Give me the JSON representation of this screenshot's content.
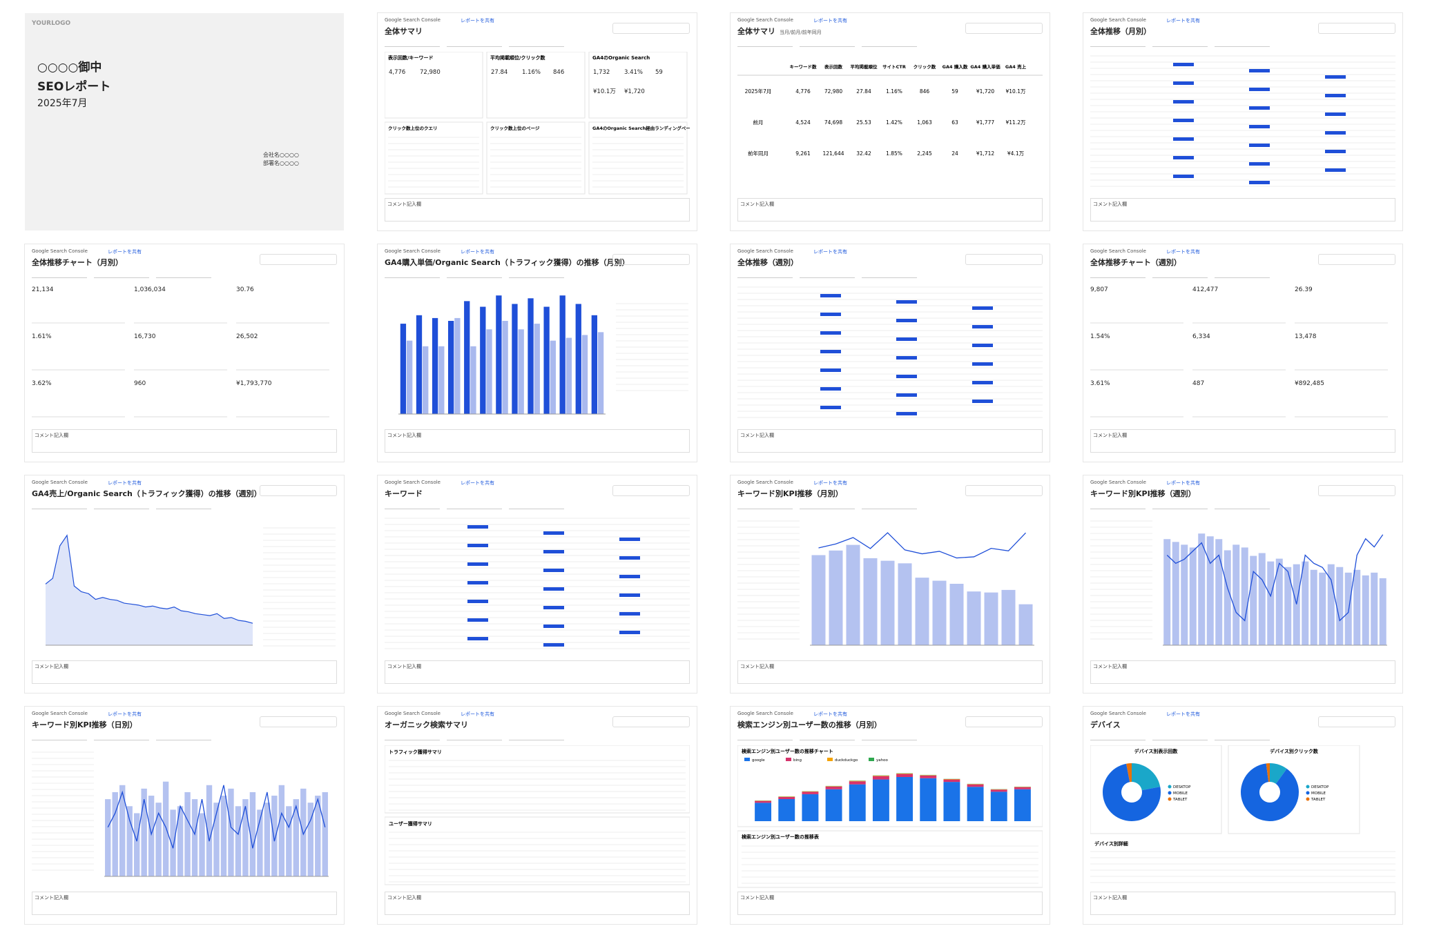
{
  "cover": {
    "logo": "YOURLOGO",
    "client": "○○○○御中",
    "title": "SEOレポート",
    "month": "2025年7月",
    "company": "会社名○○○○",
    "department": "部署名○○○○"
  },
  "source": "Google Search Console",
  "share": "レポートを共有",
  "comment": "コメント記入欄",
  "pages": [
    {
      "type": "groups",
      "title": "全体サマリ",
      "groups": [
        {
          "title": "表示回数/キーワード",
          "values": [
            "4,776",
            "72,980"
          ]
        },
        {
          "title": "平均掲載順位/クリック数",
          "values": [
            "27.84",
            "1.16%",
            "846"
          ]
        },
        {
          "title": "GA4のOrganic Search",
          "values": [
            "1,732",
            "3.41%",
            "59",
            "¥10.1万",
            "¥1,720"
          ]
        }
      ],
      "tables": [
        "クリック数上位のクエリ",
        "クリック数上位のページ",
        "GA4のOrganic Search経由ランディングページ"
      ]
    },
    {
      "type": "table",
      "title": "全体サマリ",
      "subtitle": "当月/前月/前年同月",
      "columns": [
        "キーワード数",
        "表示回数",
        "平均掲載順位",
        "サイトCTR",
        "クリック数",
        "GA4 購入数",
        "GA4 購入単価",
        "GA4 売上"
      ],
      "rows": [
        {
          "label": "2025年7月",
          "cells": [
            "4,776",
            "72,980",
            "27.84",
            "1.16%",
            "846",
            "59",
            "¥1,720",
            "¥10.1万"
          ]
        },
        {
          "label": "前月",
          "cells": [
            "4,524",
            "74,698",
            "25.53",
            "1.42%",
            "1,063",
            "63",
            "¥1,777",
            "¥11.2万"
          ]
        },
        {
          "label": "前年同月",
          "cells": [
            "9,261",
            "121,644",
            "32.42",
            "1.85%",
            "2,245",
            "24",
            "¥1,712",
            "¥4.1万"
          ]
        }
      ]
    },
    {
      "type": "placeholder",
      "title": "全体推移（月別）"
    },
    {
      "type": "kpis",
      "title": "全体推移チャート（月別）",
      "values": [
        "21,134",
        "1,036,034",
        "30.76",
        "1.61%",
        "16,730",
        "26,502",
        "3.62%",
        "960",
        "¥1,793,770"
      ]
    },
    {
      "type": "bar",
      "title": "GA4購入単価/Organic Search（トラフィック獲得）の推移（月別）",
      "ylim": [
        0,
        2200
      ],
      "series": [
        {
          "color": "#1f4fd8",
          "values": [
            1600,
            1750,
            1700,
            1650,
            2000,
            1900,
            2100,
            1950,
            2050,
            1900,
            2100,
            1950,
            1750
          ]
        },
        {
          "color": "#a9b9ee",
          "values": [
            1300,
            1200,
            1200,
            1700,
            1200,
            1500,
            1650,
            1500,
            1600,
            1300,
            1350,
            1400,
            1450
          ]
        }
      ]
    },
    {
      "type": "placeholder",
      "title": "全体推移（週別）"
    },
    {
      "type": "kpis",
      "title": "全体推移チャート（週別）",
      "values": [
        "9,807",
        "412,477",
        "26.39",
        "1.54%",
        "6,334",
        "13,478",
        "3.61%",
        "487",
        "¥892,485"
      ]
    },
    {
      "type": "area",
      "title": "GA4売上/Organic Search（トラフィック獲得）の推移（週別）",
      "ylim": [
        0,
        1300
      ],
      "color": "#1f4fd8",
      "values": [
        640,
        700,
        1040,
        1150,
        620,
        560,
        540,
        480,
        500,
        480,
        470,
        440,
        430,
        420,
        400,
        410,
        390,
        380,
        400,
        360,
        350,
        330,
        320,
        310,
        330,
        280,
        290,
        260,
        250,
        230
      ]
    },
    {
      "type": "placeholder",
      "title": "キーワード"
    },
    {
      "type": "combo",
      "title": "キーワード別KPI推移（月別）",
      "ylim": [
        0,
        2400
      ],
      "y2lim": [
        0,
        30
      ],
      "bars": [
        1760,
        1850,
        1960,
        1700,
        1650,
        1600,
        1320,
        1260,
        1200,
        1050,
        1030,
        1080,
        800
      ],
      "line": [
        23.77,
        24.73,
        26.29,
        23.61,
        27.47,
        23.27,
        22.32,
        22.93,
        21.31,
        21.58,
        23.66,
        23.04,
        27.44
      ]
    },
    {
      "type": "combo",
      "title": "キーワード別KPI推移（週別）",
      "ylim": [
        0,
        2200
      ],
      "y2lim": [
        0,
        30
      ],
      "bars": [
        1900,
        1850,
        1800,
        1750,
        2000,
        1950,
        1900,
        1700,
        1800,
        1750,
        1600,
        1650,
        1500,
        1550,
        1400,
        1450,
        1500,
        1350,
        1300,
        1450,
        1400,
        1300,
        1350,
        1250,
        1300,
        1200
      ],
      "line": [
        22,
        20,
        21,
        23,
        25,
        20,
        22,
        14,
        8,
        6,
        18,
        16,
        12,
        20,
        18,
        10,
        22,
        20,
        19,
        16,
        6,
        8,
        22,
        26,
        24,
        27
      ]
    },
    {
      "type": "combo",
      "title": "キーワード別KPI推移（日別）",
      "ylim": [
        0,
        35
      ],
      "y2lim": [
        0,
        35
      ],
      "bars": [
        22,
        24,
        26,
        20,
        18,
        25,
        23,
        21,
        27,
        19,
        20,
        24,
        22,
        18,
        26,
        21,
        23,
        25,
        20,
        22,
        24,
        19,
        21,
        23,
        26,
        20,
        22,
        25,
        21,
        23,
        24
      ],
      "line": [
        14,
        18,
        24,
        16,
        10,
        22,
        12,
        18,
        14,
        8,
        20,
        16,
        12,
        22,
        10,
        18,
        26,
        14,
        12,
        20,
        8,
        16,
        24,
        10,
        18,
        14,
        20,
        12,
        16,
        22,
        14
      ]
    },
    {
      "type": "placeholder",
      "title": "オーガニック検索サマリ",
      "sections": [
        "トラフィック獲得サマリ",
        "ユーザー獲得サマリ"
      ]
    },
    {
      "type": "stacked",
      "title": "検索エンジン別ユーザー数の推移（月別）",
      "chart_title": "検索エンジン別ユーザー数の推移チャート",
      "table_title": "検索エンジン別ユーザー数の推移表",
      "ylim": [
        0,
        900
      ],
      "series": [
        {
          "name": "google",
          "color": "#1a73e8",
          "values": [
            300,
            360,
            440,
            520,
            600,
            680,
            720,
            700,
            640,
            560,
            480,
            520
          ]
        },
        {
          "name": "bing",
          "color": "#d6336c",
          "values": [
            30,
            35,
            40,
            45,
            50,
            55,
            50,
            45,
            40,
            40,
            35,
            35
          ]
        },
        {
          "name": "duckduckgo",
          "color": "#f4a300",
          "values": [
            5,
            5,
            6,
            6,
            7,
            7,
            7,
            6,
            6,
            6,
            5,
            5
          ]
        },
        {
          "name": "yahoo",
          "color": "#2fa84f",
          "values": [
            3,
            3,
            3,
            4,
            4,
            4,
            4,
            4,
            3,
            3,
            3,
            3
          ]
        }
      ]
    },
    {
      "type": "pie",
      "title": "デバイス",
      "labels": [
        "DESKTOP",
        "MOBILE",
        "TABLET"
      ],
      "colors": [
        "#1aa7c9",
        "#1565e0",
        "#e8710a"
      ],
      "pies": [
        {
          "title": "デバイス別表示回数",
          "values": [
            22,
            75,
            3
          ]
        },
        {
          "title": "デバイス別クリック数",
          "values": [
            10,
            88,
            2
          ]
        }
      ],
      "table_title": "デバイス別詳細"
    }
  ]
}
